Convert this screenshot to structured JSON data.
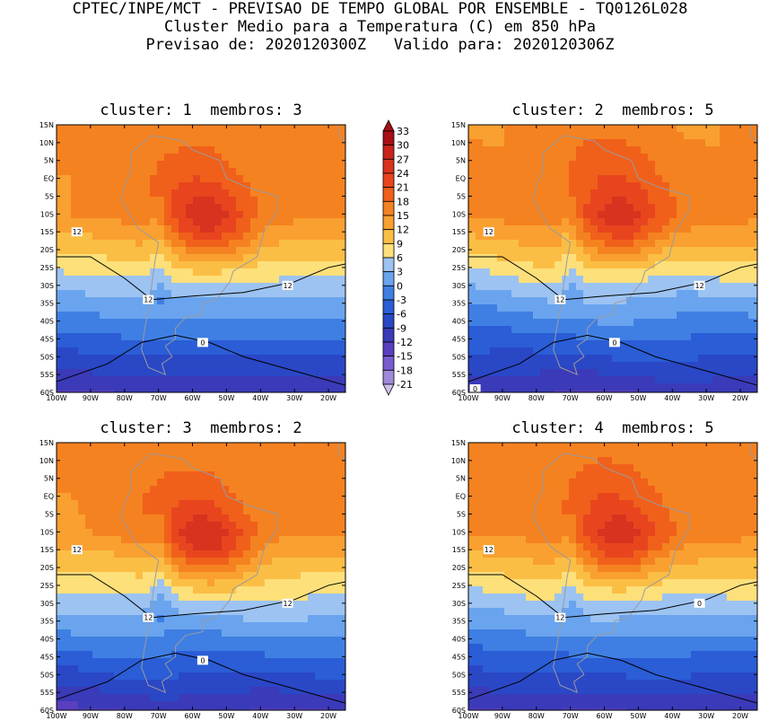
{
  "header": {
    "line1": "CPTEC/INPE/MCT - PREVISAO DE TEMPO GLOBAL POR ENSEMBLE - TQ0126L028",
    "line2": "Cluster Medio para a Temperatura (C) em 850 hPa",
    "line3": "Previsao de: 2020120300Z   Valido para: 2020120306Z"
  },
  "panels": [
    {
      "title": "cluster: 1  membros: 3",
      "labels": [
        "12",
        "12",
        "12",
        "0"
      ]
    },
    {
      "title": "cluster: 2  membros: 5",
      "labels": [
        "12",
        "12",
        "12",
        "0",
        "0"
      ]
    },
    {
      "title": "cluster: 3  membros: 2",
      "labels": [
        "12",
        "12",
        "12",
        "0"
      ]
    },
    {
      "title": "cluster: 4  membros: 5",
      "labels": [
        "12",
        "12",
        "0"
      ]
    }
  ],
  "lat_ticks": [
    "15N",
    "10N",
    "5N",
    "EQ",
    "5S",
    "10S",
    "15S",
    "20S",
    "25S",
    "30S",
    "35S",
    "40S",
    "45S",
    "50S",
    "55S",
    "60S"
  ],
  "lon_ticks": [
    "100W",
    "90W",
    "80W",
    "70W",
    "60W",
    "50W",
    "40W",
    "30W",
    "20W"
  ],
  "colorbar": {
    "levels": [
      "33",
      "30",
      "27",
      "24",
      "21",
      "18",
      "15",
      "12",
      "9",
      "6",
      "3",
      "0",
      "-3",
      "-6",
      "-9",
      "-12",
      "-15",
      "-18",
      "-21"
    ],
    "colors": [
      "#a50f15",
      "#c8241b",
      "#d8331f",
      "#e8451f",
      "#f0601a",
      "#f58220",
      "#f9a030",
      "#fbbe45",
      "#fde07a",
      "#9cc3f2",
      "#6aa4ee",
      "#3f7fe3",
      "#2a5dd6",
      "#2a47c6",
      "#3b3ab8",
      "#5a3fbf",
      "#7a5cd0",
      "#a08ad8",
      "#cfc0ec"
    ]
  },
  "colors": {
    "land_outline": "#9a9aa0",
    "contour": "#000000"
  }
}
